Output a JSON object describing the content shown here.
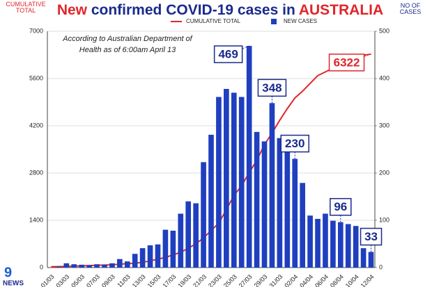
{
  "chart_data": {
    "type": "bar-line",
    "title": [
      "New",
      "confirmed COVID-19 cases in",
      "AUSTRALIA"
    ],
    "title_colors": [
      "#e0252b",
      "#1a2a8c",
      "#e0252b"
    ],
    "ylabel": "CUMULATIVE TOTAL",
    "y2label": "NO OF CASES",
    "annotation": "According to Australian Department of Health as of 6:00am April 13",
    "logo": {
      "mark": "9",
      "text": "NEWS"
    },
    "categories": [
      "01/03",
      null,
      "03/03",
      null,
      "05/03",
      null,
      "07/03",
      null,
      "09/03",
      null,
      "11/03",
      null,
      "13/03",
      null,
      "15/03",
      null,
      "17/03",
      null,
      "19/03",
      null,
      "21/03",
      null,
      "23/03",
      null,
      "25/03",
      null,
      "27/03",
      null,
      "29/03",
      null,
      "31/03",
      null,
      "02/04",
      null,
      "04/04",
      null,
      "06/04",
      null,
      "08/04",
      null,
      "10/04",
      null,
      "12/04"
    ],
    "series": [
      {
        "name": "CUMULATIVE TOTAL",
        "type": "line",
        "axis": "y",
        "color": "#e0252b",
        "values": [
          27,
          29,
          33,
          41,
          52,
          60,
          66,
          74,
          80,
          100,
          112,
          127,
          156,
          197,
          249,
          298,
          377,
          452,
          568,
          709,
          874,
          1098,
          1314,
          1717,
          2136,
          2423,
          2810,
          3179,
          3640,
          3984,
          4361,
          4707,
          5024,
          5224,
          5454,
          5687,
          5795,
          5908,
          6013,
          6108,
          6203,
          6292,
          6322
        ],
        "value_labels": [
          null,
          null,
          null,
          null,
          null,
          null,
          null,
          null,
          null,
          null,
          null,
          null,
          null,
          null,
          null,
          null,
          null,
          null,
          null,
          null,
          null,
          null,
          null,
          null,
          null,
          null,
          null,
          null,
          null,
          null,
          null,
          null,
          null,
          null,
          null,
          null,
          null,
          null,
          null,
          null,
          null,
          null,
          "6322"
        ]
      },
      {
        "name": "NEW CASES",
        "type": "bar",
        "axis": "y2",
        "color": "#1f3fbf",
        "values": [
          0,
          2,
          9,
          7,
          6,
          5,
          7,
          6,
          9,
          18,
          13,
          29,
          41,
          47,
          49,
          80,
          78,
          114,
          140,
          136,
          223,
          281,
          361,
          378,
          370,
          361,
          469,
          287,
          267,
          348,
          274,
          249,
          230,
          179,
          110,
          103,
          114,
          99,
          96,
          92,
          88,
          41,
          33
        ],
        "value_labels": [
          null,
          null,
          null,
          null,
          null,
          null,
          null,
          null,
          null,
          null,
          null,
          null,
          null,
          null,
          null,
          null,
          null,
          null,
          null,
          null,
          null,
          null,
          null,
          null,
          null,
          null,
          "469",
          null,
          null,
          "348",
          null,
          null,
          "230",
          null,
          null,
          null,
          null,
          null,
          "96",
          null,
          null,
          null,
          "33"
        ]
      }
    ],
    "ylim": [
      0,
      7000
    ],
    "yticks": [
      0,
      1400,
      2800,
      4200,
      5600,
      7000
    ],
    "y2lim": [
      0,
      500
    ],
    "y2ticks": [
      0,
      100,
      200,
      300,
      400,
      500
    ],
    "grid": true
  }
}
